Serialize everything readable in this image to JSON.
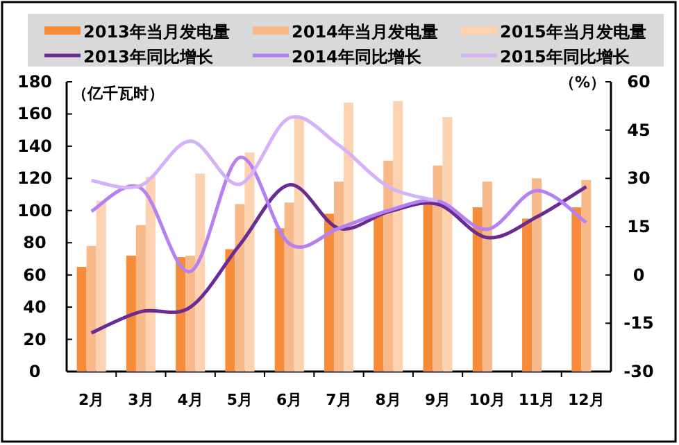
{
  "chart_data": {
    "type": "bar",
    "categories": [
      "2月",
      "3月",
      "4月",
      "5月",
      "6月",
      "7月",
      "8月",
      "9月",
      "10月",
      "11月",
      "12月"
    ],
    "series": [
      {
        "name": "2013年当月发电量",
        "color": "#f68b3a",
        "values": [
          65,
          72,
          71,
          76,
          89,
          98,
          98,
          104,
          102,
          95,
          102
        ]
      },
      {
        "name": "2014年当月发电量",
        "color": "#f8b98a",
        "values": [
          78,
          91,
          72,
          104,
          105,
          118,
          131,
          128,
          118,
          120,
          119
        ]
      },
      {
        "name": "2015年当月发电量",
        "color": "#fcd2b0",
        "values": [
          106,
          121,
          123,
          136,
          158,
          167,
          168,
          158,
          null,
          null,
          null
        ]
      },
      {
        "name": "2013年同比增长",
        "type": "line",
        "axis": "y2",
        "color": "#6a2c91",
        "values": [
          -18,
          -11.4,
          -10,
          9.4,
          28,
          14.5,
          19.6,
          22,
          11.6,
          18,
          27.4
        ]
      },
      {
        "name": "2014年同比增长",
        "type": "line",
        "axis": "y2",
        "color": "#b580f0",
        "values": [
          19.8,
          27,
          1.1,
          36.5,
          9.7,
          14.5,
          20,
          23,
          14.2,
          26.2,
          16.3
        ]
      },
      {
        "name": "2015年同比增长",
        "type": "line",
        "axis": "y2",
        "color": "#d4b2f7",
        "values": [
          29.3,
          27.8,
          41.6,
          28.2,
          48.8,
          40.3,
          27.4,
          23,
          null,
          null,
          null
        ]
      }
    ],
    "ylabel": "（亿千瓦时）",
    "y2label": "（%）",
    "ylim": [
      0,
      180
    ],
    "yticks": [
      0,
      20,
      40,
      60,
      80,
      100,
      120,
      140,
      160,
      180
    ],
    "y2lim": [
      -30,
      60
    ],
    "y2ticks": [
      -30,
      -15,
      0,
      15,
      30,
      45,
      60
    ],
    "legend": "top",
    "marker": "none",
    "line_style": "solid",
    "grid": false
  }
}
